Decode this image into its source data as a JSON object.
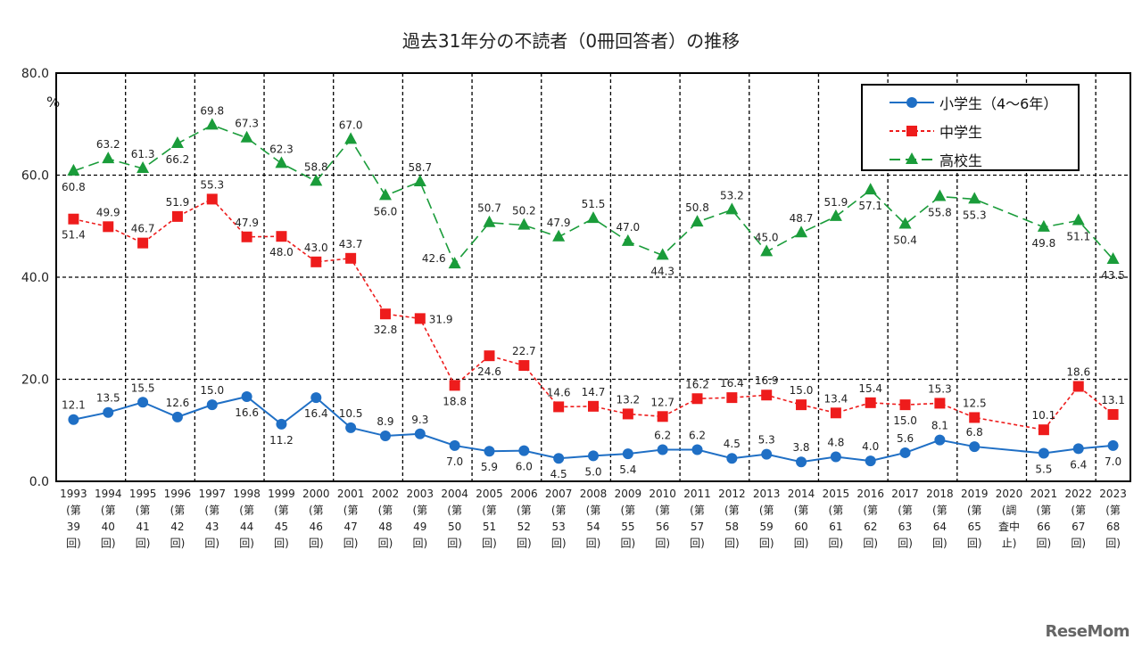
{
  "title": "過去31年分の不読者（0冊回答者）の推移",
  "watermark": "ReseMom",
  "chart_data": {
    "type": "line",
    "title": "過去31年分の不読者（0冊回答者）の推移",
    "ylabel": "%",
    "ylim": [
      0,
      80
    ],
    "yticks": [
      "0.0",
      "20.0",
      "40.0",
      "60.0",
      "80.0"
    ],
    "grid": true,
    "legend_placement": "top-right",
    "categories": [
      [
        "1993",
        "(第",
        "39",
        "回)"
      ],
      [
        "1994",
        "(第",
        "40",
        "回)"
      ],
      [
        "1995",
        "(第",
        "41",
        "回)"
      ],
      [
        "1996",
        "(第",
        "42",
        "回)"
      ],
      [
        "1997",
        "(第",
        "43",
        "回)"
      ],
      [
        "1998",
        "(第",
        "44",
        "回)"
      ],
      [
        "1999",
        "(第",
        "45",
        "回)"
      ],
      [
        "2000",
        "(第",
        "46",
        "回)"
      ],
      [
        "2001",
        "(第",
        "47",
        "回)"
      ],
      [
        "2002",
        "(第",
        "48",
        "回)"
      ],
      [
        "2003",
        "(第",
        "49",
        "回)"
      ],
      [
        "2004",
        "(第",
        "50",
        "回)"
      ],
      [
        "2005",
        "(第",
        "51",
        "回)"
      ],
      [
        "2006",
        "(第",
        "52",
        "回)"
      ],
      [
        "2007",
        "(第",
        "53",
        "回)"
      ],
      [
        "2008",
        "(第",
        "54",
        "回)"
      ],
      [
        "2009",
        "(第",
        "55",
        "回)"
      ],
      [
        "2010",
        "(第",
        "56",
        "回)"
      ],
      [
        "2011",
        "(第",
        "57",
        "回)"
      ],
      [
        "2012",
        "(第",
        "58",
        "回)"
      ],
      [
        "2013",
        "(第",
        "59",
        "回)"
      ],
      [
        "2014",
        "(第",
        "60",
        "回)"
      ],
      [
        "2015",
        "(第",
        "61",
        "回)"
      ],
      [
        "2016",
        "(第",
        "62",
        "回)"
      ],
      [
        "2017",
        "(第",
        "63",
        "回)"
      ],
      [
        "2018",
        "(第",
        "64",
        "回)"
      ],
      [
        "2019",
        "(第",
        "65",
        "回)"
      ],
      [
        "2020",
        "(調",
        "査中",
        "止)"
      ],
      [
        "2021",
        "(第",
        "66",
        "回)"
      ],
      [
        "2022",
        "(第",
        "67",
        "回)"
      ],
      [
        "2023",
        "(第",
        "68",
        "回)"
      ]
    ],
    "series": [
      {
        "name": "小学生（4～6年）",
        "color": "#1f6fc5",
        "marker": "circle",
        "dash": "solid",
        "values": [
          12.1,
          13.5,
          15.5,
          12.6,
          15.0,
          16.6,
          11.2,
          16.4,
          10.5,
          8.9,
          9.3,
          7.0,
          5.9,
          6.0,
          4.5,
          5.0,
          5.4,
          6.2,
          6.2,
          4.5,
          5.3,
          3.8,
          4.8,
          4.0,
          5.6,
          8.1,
          6.8,
          null,
          5.5,
          6.4,
          7.0
        ]
      },
      {
        "name": "中学生",
        "color": "#ee1c1c",
        "marker": "square",
        "dash": "short-dash",
        "values": [
          51.4,
          49.9,
          46.7,
          51.9,
          55.3,
          47.9,
          48.0,
          43.0,
          43.7,
          32.8,
          31.9,
          18.8,
          24.6,
          22.7,
          14.6,
          14.7,
          13.2,
          12.7,
          16.2,
          16.4,
          16.9,
          15.0,
          13.4,
          15.4,
          15.0,
          15.3,
          12.5,
          null,
          10.1,
          18.6,
          13.1
        ]
      },
      {
        "name": "高校生",
        "color": "#1a9c3a",
        "marker": "triangle",
        "dash": "long-dash",
        "values": [
          60.8,
          63.2,
          61.3,
          66.2,
          69.8,
          67.3,
          62.3,
          58.8,
          67.0,
          56.0,
          58.7,
          42.6,
          50.7,
          50.2,
          47.9,
          51.5,
          47.0,
          44.3,
          50.8,
          53.2,
          45.0,
          48.7,
          51.9,
          57.1,
          50.4,
          55.8,
          55.3,
          null,
          49.8,
          51.1,
          43.5
        ]
      }
    ]
  }
}
